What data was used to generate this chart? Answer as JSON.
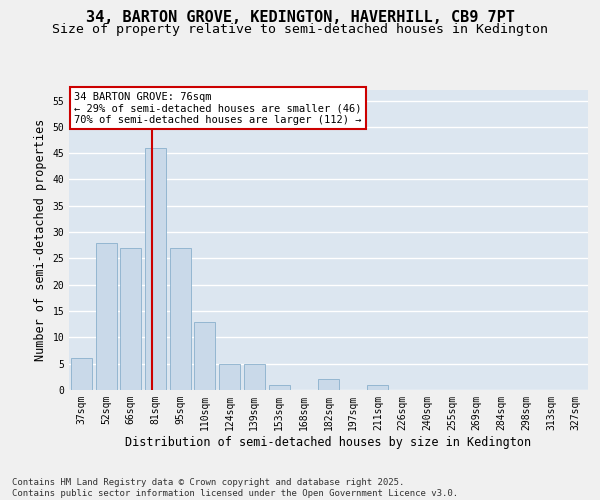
{
  "title1": "34, BARTON GROVE, KEDINGTON, HAVERHILL, CB9 7PT",
  "title2": "Size of property relative to semi-detached houses in Kedington",
  "xlabel": "Distribution of semi-detached houses by size in Kedington",
  "ylabel": "Number of semi-detached properties",
  "categories": [
    "37sqm",
    "52sqm",
    "66sqm",
    "81sqm",
    "95sqm",
    "110sqm",
    "124sqm",
    "139sqm",
    "153sqm",
    "168sqm",
    "182sqm",
    "197sqm",
    "211sqm",
    "226sqm",
    "240sqm",
    "255sqm",
    "269sqm",
    "284sqm",
    "298sqm",
    "313sqm",
    "327sqm"
  ],
  "values": [
    6,
    28,
    27,
    46,
    27,
    13,
    5,
    5,
    1,
    0,
    2,
    0,
    1,
    0,
    0,
    0,
    0,
    0,
    0,
    0,
    0
  ],
  "bar_color": "#c9d9e9",
  "bar_edge_color": "#8ab0cc",
  "red_line_x": 2.85,
  "annotation_title": "34 BARTON GROVE: 76sqm",
  "annotation_line1": "← 29% of semi-detached houses are smaller (46)",
  "annotation_line2": "70% of semi-detached houses are larger (112) →",
  "annotation_box_color": "#ffffff",
  "annotation_box_edge": "#cc0000",
  "vline_color": "#cc0000",
  "background_color": "#dce6f0",
  "grid_color": "#ffffff",
  "fig_bg_color": "#f0f0f0",
  "ylim": [
    0,
    57
  ],
  "yticks": [
    0,
    5,
    10,
    15,
    20,
    25,
    30,
    35,
    40,
    45,
    50,
    55
  ],
  "footer": "Contains HM Land Registry data © Crown copyright and database right 2025.\nContains public sector information licensed under the Open Government Licence v3.0.",
  "title1_fontsize": 11,
  "title2_fontsize": 9.5,
  "tick_fontsize": 7,
  "label_fontsize": 8.5,
  "footer_fontsize": 6.5
}
